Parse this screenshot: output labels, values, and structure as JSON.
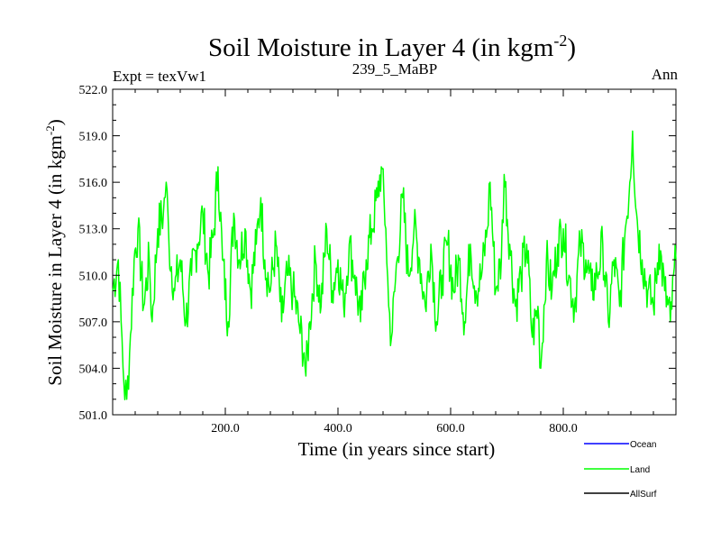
{
  "chart_data": {
    "type": "line",
    "title": "Soil Moisture in Layer 4 (in kgm",
    "title_sup": "-2",
    "title_close": ")",
    "left_label": "Expt = texVw1",
    "center_label": "239_5_MaBP",
    "right_label": "Ann",
    "xlabel": "Time (in years since start)",
    "ylabel": "Soil Moisture in Layer 4 (in kgm",
    "ylabel_sup": "-2",
    "ylabel_close": ")",
    "xlim": [
      0,
      1000
    ],
    "ylim": [
      501,
      522
    ],
    "xticks": [
      200,
      400,
      600,
      800
    ],
    "xtick_labels": [
      "200.0",
      "400.0",
      "600.0",
      "800.0"
    ],
    "yticks": [
      501,
      504,
      507,
      510,
      513,
      516,
      519,
      522
    ],
    "ytick_labels": [
      "501.0",
      "504.0",
      "507.0",
      "510.0",
      "513.0",
      "516.0",
      "519.0",
      "522.0"
    ],
    "legend": [
      {
        "name": "Ocean",
        "color": "#0000ff"
      },
      {
        "name": "Land",
        "color": "#00ff00"
      },
      {
        "name": "AllSurf",
        "color": "#000000"
      }
    ],
    "series": [
      {
        "name": "Land",
        "color": "#00ff00",
        "x": [
          0,
          10,
          15,
          20,
          25,
          30,
          38,
          45,
          55,
          65,
          70,
          80,
          90,
          95,
          100,
          110,
          120,
          130,
          140,
          150,
          160,
          170,
          180,
          187,
          195,
          205,
          215,
          225,
          235,
          245,
          255,
          263,
          270,
          280,
          290,
          300,
          310,
          320,
          330,
          340,
          343,
          350,
          360,
          370,
          380,
          390,
          400,
          410,
          420,
          430,
          440,
          450,
          460,
          470,
          477,
          485,
          490,
          495,
          505,
          515,
          525,
          535,
          545,
          555,
          565,
          575,
          585,
          595,
          605,
          615,
          625,
          635,
          645,
          655,
          665,
          670,
          680,
          690,
          695,
          705,
          715,
          725,
          735,
          745,
          755,
          760,
          770,
          780,
          790,
          800,
          810,
          820,
          830,
          840,
          850,
          860,
          870,
          880,
          890,
          900,
          910,
          918,
          923,
          930,
          940,
          950,
          960,
          970,
          980,
          990,
          1000
        ],
        "values": [
          509,
          511,
          507,
          503,
          502,
          505,
          511,
          513,
          508,
          511,
          507,
          513,
          514,
          516,
          512,
          509,
          511,
          507,
          510,
          512,
          514,
          510,
          513,
          517,
          511,
          507,
          514,
          511,
          513,
          509,
          512,
          515,
          511,
          509,
          512,
          507,
          510,
          509,
          507,
          505,
          503.5,
          507,
          511,
          508,
          513,
          509,
          511,
          508,
          512,
          510,
          507,
          511,
          513,
          515,
          517,
          513,
          508,
          506,
          511,
          515,
          510,
          513,
          511,
          508,
          512,
          507,
          510,
          512,
          509,
          511,
          507,
          512,
          509,
          510,
          513,
          516,
          509,
          511,
          516.5,
          512,
          508,
          510,
          512,
          506,
          508,
          504,
          511,
          509,
          512,
          513,
          510,
          508,
          512,
          511,
          509,
          510,
          512,
          507,
          511,
          508,
          513,
          516,
          519.3,
          514,
          511,
          509,
          508,
          512,
          509,
          507,
          511
        ]
      }
    ]
  }
}
